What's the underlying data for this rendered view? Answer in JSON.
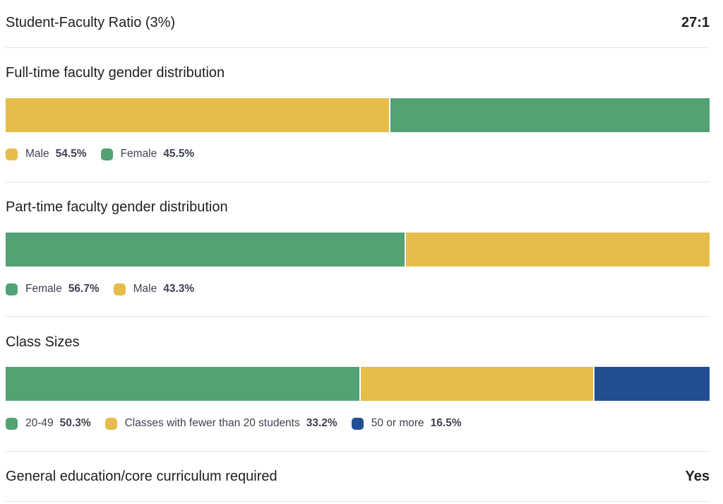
{
  "ratio": {
    "label": "Student-Faculty Ratio (3%)",
    "value": "27:1"
  },
  "colors": {
    "yellow": "#E6BD4A",
    "green": "#52A274",
    "blue": "#234E92",
    "divider": "#E3E3E3"
  },
  "chart_data": [
    {
      "type": "bar",
      "orientation": "horizontal-stacked-100",
      "title": "Full-time faculty gender distribution",
      "series": [
        {
          "name": "Male",
          "value": 54.5,
          "display": "54.5%",
          "color": "#E6BD4A"
        },
        {
          "name": "Female",
          "value": 45.5,
          "display": "45.5%",
          "color": "#52A274"
        }
      ]
    },
    {
      "type": "bar",
      "orientation": "horizontal-stacked-100",
      "title": "Part-time faculty gender distribution",
      "series": [
        {
          "name": "Female",
          "value": 56.7,
          "display": "56.7%",
          "color": "#52A274"
        },
        {
          "name": "Male",
          "value": 43.3,
          "display": "43.3%",
          "color": "#E6BD4A"
        }
      ]
    },
    {
      "type": "bar",
      "orientation": "horizontal-stacked-100",
      "title": "Class Sizes",
      "series": [
        {
          "name": "20-49",
          "value": 50.3,
          "display": "50.3%",
          "color": "#52A274"
        },
        {
          "name": "Classes with fewer than 20 students",
          "value": 33.2,
          "display": "33.2%",
          "color": "#E6BD4A"
        },
        {
          "name": "50 or more",
          "value": 16.5,
          "display": "16.5%",
          "color": "#234E92"
        }
      ]
    }
  ],
  "curriculum": {
    "label": "General education/core curriculum required",
    "value": "Yes"
  }
}
